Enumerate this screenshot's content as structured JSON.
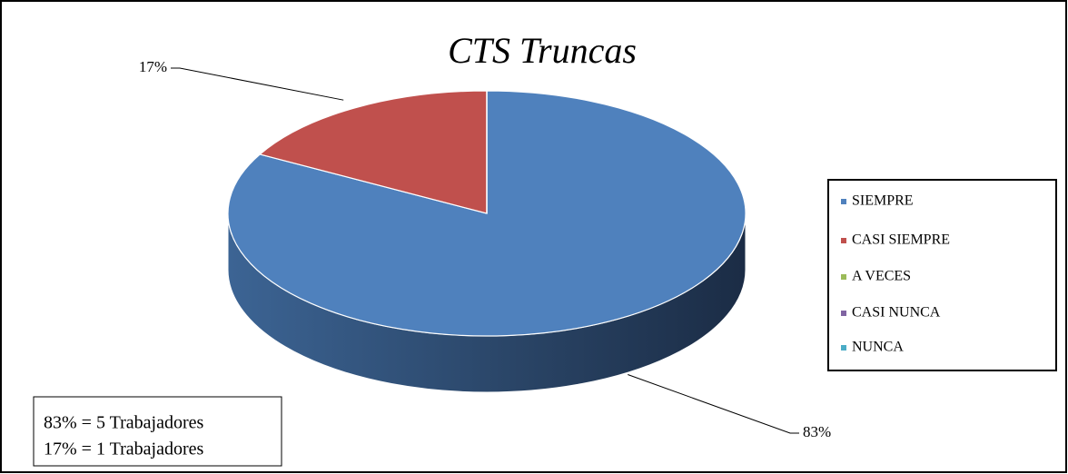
{
  "chart_data": {
    "type": "pie",
    "title": "CTS Truncas",
    "categories": [
      "SIEMPRE",
      "CASI SIEMPRE",
      "A VECES",
      "CASI NUNCA",
      "NUNCA"
    ],
    "values": [
      83,
      17,
      0,
      0,
      0
    ],
    "value_labels": [
      "83%",
      "17%",
      null,
      null,
      null
    ],
    "colors": [
      "#4f81bd",
      "#c0504d",
      "#9bbb59",
      "#8064a2",
      "#4bacc6"
    ],
    "legend": "right",
    "annotation": [
      "83% = 5 Trabajadores",
      "17% = 1 Trabajadores"
    ]
  }
}
